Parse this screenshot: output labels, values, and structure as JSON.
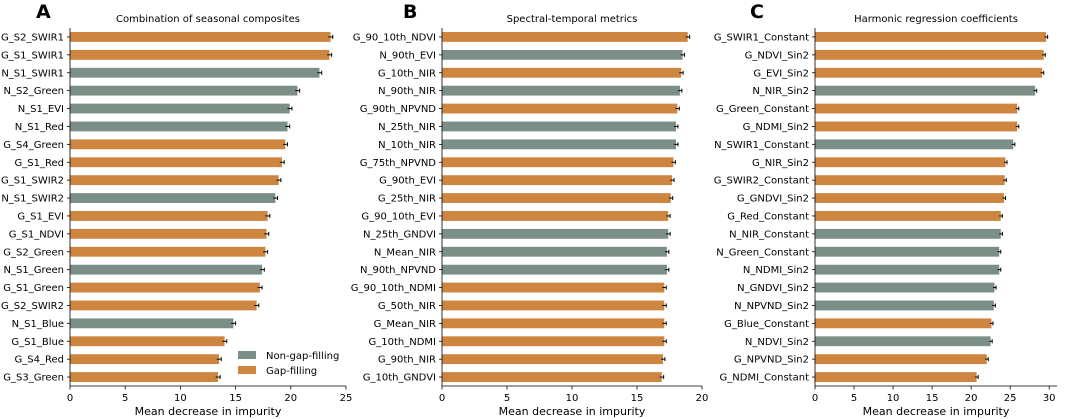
{
  "legend": {
    "entries": [
      {
        "label": "Non-gap-filling",
        "color": "#7b8f86"
      },
      {
        "label": "Gap-filling",
        "color": "#cd853f"
      }
    ],
    "placement": "bottom-right of panel A"
  },
  "chart_data": [
    {
      "type": "bar",
      "orientation": "horizontal",
      "letter": "A",
      "title": "Combination of seasonal composites",
      "xlabel": "Mean decrease in impurity",
      "ylabel": "",
      "xlim": [
        0,
        25
      ],
      "xticks": [
        0,
        5,
        10,
        15,
        20,
        25
      ],
      "categories": [
        "G_S2_SWIR1",
        "G_S1_SWIR1",
        "N_S1_SWIR1",
        "N_S2_Green",
        "N_S1_EVI",
        "N_S1_Red",
        "G_S4_Green",
        "G_S1_Red",
        "G_S1_SWIR2",
        "N_S1_SWIR2",
        "G_S1_EVI",
        "G_S1_NDVI",
        "G_S2_Green",
        "N_S1_Green",
        "G_S1_Green",
        "G_S2_SWIR2",
        "N_S1_Blue",
        "G_S1_Blue",
        "G_S4_Red",
        "G_S3_Green"
      ],
      "values": [
        23.6,
        23.5,
        22.6,
        20.6,
        19.9,
        19.7,
        19.5,
        19.2,
        18.9,
        18.6,
        17.9,
        17.8,
        17.7,
        17.4,
        17.2,
        16.9,
        14.8,
        14.0,
        13.5,
        13.4
      ],
      "errors": [
        0.2,
        0.2,
        0.2,
        0.2,
        0.2,
        0.2,
        0.2,
        0.2,
        0.2,
        0.2,
        0.2,
        0.2,
        0.2,
        0.2,
        0.2,
        0.2,
        0.2,
        0.2,
        0.2,
        0.2
      ],
      "groups": [
        "Gap-filling",
        "Gap-filling",
        "Non-gap-filling",
        "Non-gap-filling",
        "Non-gap-filling",
        "Non-gap-filling",
        "Gap-filling",
        "Gap-filling",
        "Gap-filling",
        "Non-gap-filling",
        "Gap-filling",
        "Gap-filling",
        "Gap-filling",
        "Non-gap-filling",
        "Gap-filling",
        "Gap-filling",
        "Non-gap-filling",
        "Gap-filling",
        "Gap-filling",
        "Gap-filling"
      ]
    },
    {
      "type": "bar",
      "orientation": "horizontal",
      "letter": "B",
      "title": "Spectral-temporal metrics",
      "xlabel": "Mean decrease in impurity",
      "ylabel": "",
      "xlim": [
        0,
        20
      ],
      "xticks": [
        0,
        5,
        10,
        15,
        20
      ],
      "categories": [
        "G_90_10th_NDVI",
        "N_90th_EVI",
        "G_10th_NIR",
        "N_90th_NIR",
        "G_90th_NPVND",
        "N_25th_NIR",
        "N_10th_NIR",
        "G_75th_NPVND",
        "G_90th_EVI",
        "G_25th_NIR",
        "G_90_10th_EVI",
        "N_25th_GNDVI",
        "N_Mean_NIR",
        "N_90th_NPVND",
        "G_90_10th_NDMI",
        "G_50th_NIR",
        "G_Mean_NIR",
        "G_10th_NDMI",
        "G_90th_NIR",
        "G_10th_GNDVI"
      ],
      "values": [
        18.9,
        18.5,
        18.4,
        18.3,
        18.1,
        18.0,
        18.0,
        17.8,
        17.7,
        17.6,
        17.4,
        17.4,
        17.3,
        17.3,
        17.1,
        17.1,
        17.1,
        17.1,
        17.0,
        16.9
      ],
      "errors": [
        0.15,
        0.15,
        0.15,
        0.15,
        0.15,
        0.15,
        0.15,
        0.15,
        0.15,
        0.15,
        0.15,
        0.15,
        0.15,
        0.15,
        0.15,
        0.15,
        0.15,
        0.15,
        0.15,
        0.15
      ],
      "groups": [
        "Gap-filling",
        "Non-gap-filling",
        "Gap-filling",
        "Non-gap-filling",
        "Gap-filling",
        "Non-gap-filling",
        "Non-gap-filling",
        "Gap-filling",
        "Gap-filling",
        "Gap-filling",
        "Gap-filling",
        "Non-gap-filling",
        "Non-gap-filling",
        "Non-gap-filling",
        "Gap-filling",
        "Gap-filling",
        "Gap-filling",
        "Gap-filling",
        "Gap-filling",
        "Gap-filling"
      ]
    },
    {
      "type": "bar",
      "orientation": "horizontal",
      "letter": "C",
      "title": "Harmonic regression coefficients",
      "xlabel": "Mean decrease in impurity",
      "ylabel": "",
      "xlim": [
        0,
        31
      ],
      "xticks": [
        0,
        5,
        10,
        15,
        20,
        25,
        30
      ],
      "categories": [
        "G_SWIR1_Constant",
        "G_NDVI_Sin2",
        "G_EVI_Sin2",
        "N_NIR_Sin2",
        "G_Green_Constant",
        "G_NDMI_Sin2",
        "N_SWIR1_Constant",
        "G_NIR_Sin2",
        "G_SWIR2_Constant",
        "G_GNDVI_Sin2",
        "G_Red_Constant",
        "N_NIR_Constant",
        "N_Green_Constant",
        "N_NDMI_Sin2",
        "N_GNDVI_Sin2",
        "N_NPVND_Sin2",
        "G_Blue_Constant",
        "N_NDVI_Sin2",
        "G_NPVND_Sin2",
        "G_NDMI_Constant"
      ],
      "values": [
        29.6,
        29.3,
        29.1,
        28.2,
        25.9,
        25.9,
        25.4,
        24.4,
        24.3,
        24.2,
        23.8,
        23.8,
        23.6,
        23.6,
        23.0,
        22.9,
        22.6,
        22.5,
        22.0,
        20.7
      ],
      "errors": [
        0.2,
        0.2,
        0.2,
        0.2,
        0.2,
        0.2,
        0.2,
        0.2,
        0.2,
        0.2,
        0.2,
        0.2,
        0.2,
        0.2,
        0.2,
        0.2,
        0.2,
        0.2,
        0.2,
        0.2
      ],
      "groups": [
        "Gap-filling",
        "Gap-filling",
        "Gap-filling",
        "Non-gap-filling",
        "Gap-filling",
        "Gap-filling",
        "Non-gap-filling",
        "Gap-filling",
        "Gap-filling",
        "Gap-filling",
        "Gap-filling",
        "Non-gap-filling",
        "Non-gap-filling",
        "Non-gap-filling",
        "Non-gap-filling",
        "Non-gap-filling",
        "Gap-filling",
        "Non-gap-filling",
        "Gap-filling",
        "Gap-filling"
      ]
    }
  ]
}
